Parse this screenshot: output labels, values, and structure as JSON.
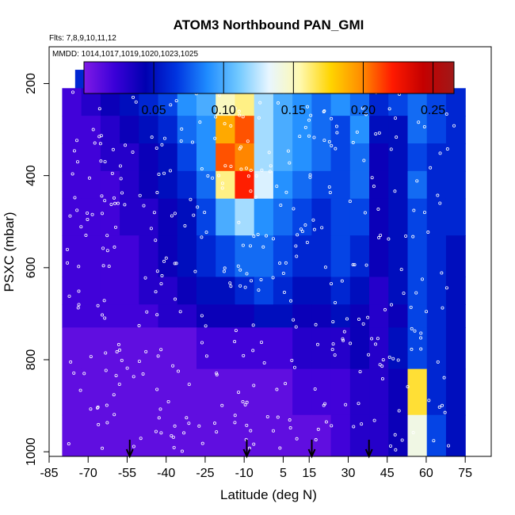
{
  "chart_data": {
    "type": "heatmap",
    "title": "ATOM3 Northbound PAN_GMI",
    "flights_label": "Flts: 7,8,9,10,11,12",
    "dates_label": "MMDD: 1014,1017,1019,1020,1023,1025",
    "xlabel": "Latitude (deg N)",
    "ylabel": "PSXC (mbar)",
    "xlim": [
      -85,
      85
    ],
    "ylim": [
      1010,
      120
    ],
    "x_ticks": [
      -85,
      -70,
      -55,
      -40,
      -25,
      -10,
      5,
      15,
      30,
      45,
      60,
      75
    ],
    "x_tick_labels": [
      "-85",
      "-70",
      "-55",
      "-40",
      "-25",
      "-10",
      "5",
      "15",
      "30",
      "45",
      "60",
      "75"
    ],
    "y_ticks": [
      200,
      400,
      600,
      800,
      1000
    ],
    "y_tick_labels": [
      "200",
      "400",
      "600",
      "800",
      "1000"
    ],
    "colorbar": {
      "min": 0.0,
      "max": 0.265,
      "tick_values": [
        0.05,
        0.1,
        0.15,
        0.2,
        0.25
      ],
      "tick_labels": [
        "0.05",
        "0.10",
        "0.15",
        "0.20",
        "0.25"
      ],
      "colors": [
        "#7f1ae6",
        "#3a00d8",
        "#0000b0",
        "#0035e0",
        "#1f8cff",
        "#70c8ff",
        "#e8f6ff",
        "#fff9b0",
        "#ffd400",
        "#ff8c00",
        "#ff1a00",
        "#c40000",
        "#a01818"
      ]
    },
    "arrows_latitude": [
      -54,
      -9,
      16,
      38
    ],
    "grid": false,
    "curtain": [
      {
        "p": [
          170,
          210
        ],
        "lat_start": -75,
        "lat_end": 55,
        "values": [
          0.06,
          0.07,
          0.08,
          0.08,
          0.09,
          0.1,
          0.1,
          0.11,
          0.12,
          0.13,
          0.14,
          0.13,
          0.11,
          0.09,
          0.08,
          0.08,
          0.09,
          0.08
        ]
      },
      {
        "p": [
          210,
          270
        ],
        "lat_start": -80,
        "lat_end": 75,
        "values": [
          0.02,
          0.03,
          0.04,
          0.05,
          0.06,
          0.07,
          0.09,
          0.1,
          0.15,
          0.16,
          0.12,
          0.1,
          0.09,
          0.08,
          0.09,
          0.08,
          0.06,
          0.07,
          0.08,
          0.07,
          0.06
        ]
      },
      {
        "p": [
          270,
          330
        ],
        "lat_start": -80,
        "lat_end": 75,
        "values": [
          0.02,
          0.02,
          0.03,
          0.04,
          0.05,
          0.06,
          0.08,
          0.09,
          0.19,
          0.21,
          0.12,
          0.1,
          0.09,
          0.08,
          0.07,
          0.09,
          0.05,
          0.05,
          0.08,
          0.07,
          0.06
        ]
      },
      {
        "p": [
          330,
          390
        ],
        "lat_start": -80,
        "lat_end": 75,
        "values": [
          0.02,
          0.02,
          0.03,
          0.03,
          0.04,
          0.05,
          0.07,
          0.09,
          0.21,
          0.2,
          0.12,
          0.1,
          0.09,
          0.08,
          0.07,
          0.08,
          0.04,
          0.05,
          0.07,
          0.06,
          0.06
        ]
      },
      {
        "p": [
          390,
          450
        ],
        "lat_start": -80,
        "lat_end": 75,
        "values": [
          0.02,
          0.02,
          0.02,
          0.03,
          0.04,
          0.05,
          0.06,
          0.08,
          0.16,
          0.22,
          0.13,
          0.09,
          0.08,
          0.07,
          0.07,
          0.08,
          0.04,
          0.05,
          0.08,
          0.06,
          0.06
        ]
      },
      {
        "p": [
          450,
          530
        ],
        "lat_start": -80,
        "lat_end": 75,
        "values": [
          0.02,
          0.02,
          0.02,
          0.03,
          0.03,
          0.04,
          0.05,
          0.07,
          0.1,
          0.12,
          0.09,
          0.08,
          0.07,
          0.06,
          0.07,
          0.07,
          0.04,
          0.05,
          0.07,
          0.06,
          0.06
        ]
      },
      {
        "p": [
          530,
          620
        ],
        "lat_start": -80,
        "lat_end": 75,
        "values": [
          0.02,
          0.02,
          0.02,
          0.02,
          0.03,
          0.04,
          0.05,
          0.06,
          0.07,
          0.08,
          0.08,
          0.07,
          0.06,
          0.06,
          0.07,
          0.06,
          0.04,
          0.05,
          0.07,
          0.06,
          0.05
        ]
      },
      {
        "p": [
          620,
          680
        ],
        "lat_start": -80,
        "lat_end": 75,
        "values": [
          0.02,
          0.02,
          0.02,
          0.02,
          0.03,
          0.03,
          0.04,
          0.05,
          0.05,
          0.06,
          0.07,
          0.06,
          0.05,
          0.05,
          0.06,
          0.05,
          0.03,
          0.05,
          0.07,
          0.06,
          0.05
        ]
      },
      {
        "p": [
          680,
          730
        ],
        "lat_start": -80,
        "lat_end": 75,
        "values": [
          0.02,
          0.02,
          0.02,
          0.02,
          0.02,
          0.03,
          0.03,
          0.04,
          0.04,
          0.04,
          0.05,
          0.05,
          0.04,
          0.04,
          0.05,
          0.04,
          0.03,
          0.04,
          0.07,
          0.06,
          0.05
        ]
      },
      {
        "p": [
          730,
          820
        ],
        "lat_start": -80,
        "lat_end": 75,
        "values": [
          0.01,
          0.01,
          0.01,
          0.01,
          0.01,
          0.01,
          0.01,
          0.02,
          0.02,
          0.02,
          0.02,
          0.02,
          0.03,
          0.03,
          0.03,
          0.04,
          0.03,
          0.05,
          0.07,
          0.06,
          0.05
        ]
      },
      {
        "p": [
          820,
          920
        ],
        "lat_start": -80,
        "lat_end": 75,
        "values": [
          0.01,
          0.01,
          0.01,
          0.01,
          0.01,
          0.01,
          0.01,
          0.01,
          0.01,
          0.01,
          0.01,
          0.01,
          0.02,
          0.02,
          0.02,
          0.03,
          0.03,
          0.04,
          0.17,
          0.06,
          0.05
        ]
      },
      {
        "p": [
          920,
          1010
        ],
        "lat_start": -80,
        "lat_end": 75,
        "values": [
          0.01,
          0.01,
          0.01,
          0.01,
          0.01,
          0.01,
          0.01,
          0.01,
          0.01,
          0.01,
          0.01,
          0.01,
          0.01,
          0.01,
          0.02,
          0.03,
          0.03,
          0.04,
          0.14,
          0.07,
          0.05
        ]
      }
    ]
  }
}
